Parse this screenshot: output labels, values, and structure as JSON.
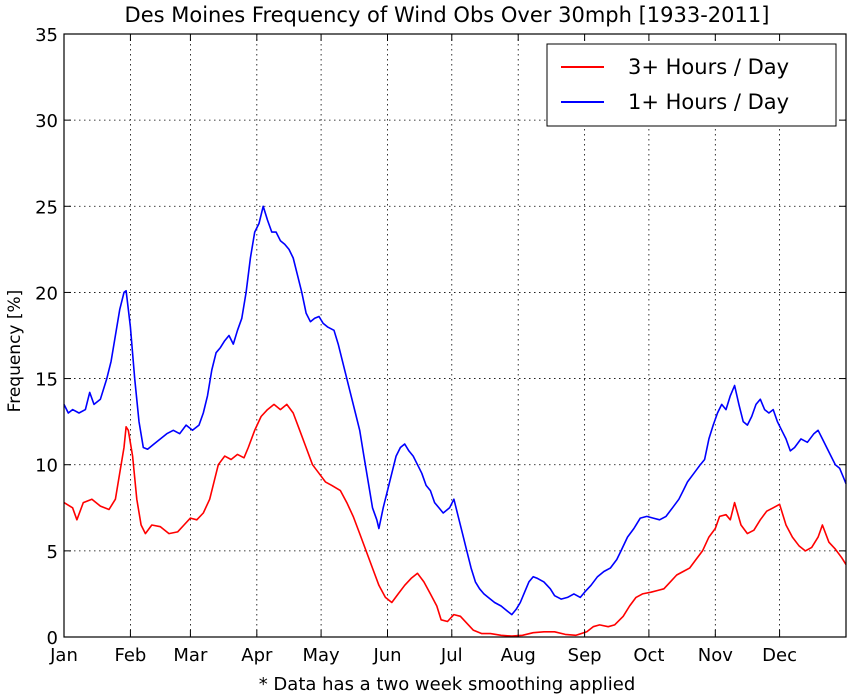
{
  "chart_data": {
    "type": "line",
    "title": "Des Moines Frequency of Wind Obs Over 30mph [1933-2011]",
    "xlabel": "* Data has a two week smoothing applied",
    "ylabel": "Frequency [%]",
    "xlim": [
      1,
      366
    ],
    "ylim": [
      0,
      35
    ],
    "yticks": [
      0,
      5,
      10,
      15,
      20,
      25,
      30,
      35
    ],
    "xticks": [
      {
        "label": "Jan",
        "day": 1
      },
      {
        "label": "Feb",
        "day": 32
      },
      {
        "label": "Mar",
        "day": 60
      },
      {
        "label": "Apr",
        "day": 91
      },
      {
        "label": "May",
        "day": 121
      },
      {
        "label": "Jun",
        "day": 152
      },
      {
        "label": "Jul",
        "day": 182
      },
      {
        "label": "Aug",
        "day": 213
      },
      {
        "label": "Sep",
        "day": 244
      },
      {
        "label": "Oct",
        "day": 274
      },
      {
        "label": "Nov",
        "day": 305
      },
      {
        "label": "Dec",
        "day": 335
      }
    ],
    "grid": true,
    "legend_position": "top-right",
    "series": [
      {
        "name": "3+ Hours / Day",
        "color": "#ff0000",
        "points": [
          [
            1,
            7.8
          ],
          [
            5,
            7.5
          ],
          [
            7,
            6.8
          ],
          [
            10,
            7.8
          ],
          [
            14,
            8.0
          ],
          [
            18,
            7.6
          ],
          [
            22,
            7.4
          ],
          [
            25,
            8.0
          ],
          [
            27,
            9.5
          ],
          [
            29,
            11.0
          ],
          [
            30,
            12.2
          ],
          [
            31,
            12.0
          ],
          [
            33,
            10.5
          ],
          [
            35,
            8.0
          ],
          [
            37,
            6.5
          ],
          [
            39,
            6.0
          ],
          [
            42,
            6.5
          ],
          [
            46,
            6.4
          ],
          [
            50,
            6.0
          ],
          [
            54,
            6.1
          ],
          [
            57,
            6.5
          ],
          [
            60,
            6.9
          ],
          [
            63,
            6.8
          ],
          [
            66,
            7.2
          ],
          [
            69,
            8.0
          ],
          [
            71,
            9.0
          ],
          [
            73,
            10.0
          ],
          [
            76,
            10.5
          ],
          [
            79,
            10.3
          ],
          [
            82,
            10.6
          ],
          [
            85,
            10.4
          ],
          [
            87,
            11.0
          ],
          [
            90,
            12.0
          ],
          [
            93,
            12.8
          ],
          [
            96,
            13.2
          ],
          [
            99,
            13.5
          ],
          [
            102,
            13.2
          ],
          [
            105,
            13.5
          ],
          [
            108,
            13.0
          ],
          [
            111,
            12.0
          ],
          [
            114,
            11.0
          ],
          [
            117,
            10.0
          ],
          [
            120,
            9.5
          ],
          [
            123,
            9.0
          ],
          [
            126,
            8.8
          ],
          [
            130,
            8.5
          ],
          [
            133,
            7.8
          ],
          [
            136,
            7.0
          ],
          [
            139,
            6.0
          ],
          [
            142,
            5.0
          ],
          [
            145,
            4.0
          ],
          [
            148,
            3.0
          ],
          [
            151,
            2.3
          ],
          [
            154,
            2.0
          ],
          [
            157,
            2.5
          ],
          [
            160,
            3.0
          ],
          [
            163,
            3.4
          ],
          [
            166,
            3.7
          ],
          [
            169,
            3.2
          ],
          [
            172,
            2.5
          ],
          [
            175,
            1.8
          ],
          [
            177,
            1.0
          ],
          [
            180,
            0.9
          ],
          [
            183,
            1.3
          ],
          [
            186,
            1.2
          ],
          [
            189,
            0.8
          ],
          [
            192,
            0.4
          ],
          [
            196,
            0.2
          ],
          [
            200,
            0.2
          ],
          [
            205,
            0.1
          ],
          [
            210,
            0.05
          ],
          [
            215,
            0.1
          ],
          [
            220,
            0.25
          ],
          [
            225,
            0.3
          ],
          [
            230,
            0.3
          ],
          [
            235,
            0.15
          ],
          [
            240,
            0.1
          ],
          [
            245,
            0.3
          ],
          [
            248,
            0.6
          ],
          [
            251,
            0.7
          ],
          [
            255,
            0.6
          ],
          [
            258,
            0.7
          ],
          [
            262,
            1.2
          ],
          [
            265,
            1.8
          ],
          [
            268,
            2.3
          ],
          [
            271,
            2.5
          ],
          [
            275,
            2.6
          ],
          [
            278,
            2.7
          ],
          [
            281,
            2.8
          ],
          [
            284,
            3.2
          ],
          [
            287,
            3.6
          ],
          [
            290,
            3.8
          ],
          [
            293,
            4.0
          ],
          [
            296,
            4.5
          ],
          [
            299,
            5.0
          ],
          [
            302,
            5.8
          ],
          [
            305,
            6.3
          ],
          [
            307,
            7.0
          ],
          [
            310,
            7.1
          ],
          [
            312,
            6.8
          ],
          [
            314,
            7.8
          ],
          [
            317,
            6.5
          ],
          [
            320,
            6.0
          ],
          [
            323,
            6.2
          ],
          [
            326,
            6.8
          ],
          [
            329,
            7.3
          ],
          [
            332,
            7.5
          ],
          [
            335,
            7.7
          ],
          [
            338,
            6.5
          ],
          [
            341,
            5.8
          ],
          [
            344,
            5.3
          ],
          [
            347,
            5.0
          ],
          [
            350,
            5.2
          ],
          [
            353,
            5.8
          ],
          [
            355,
            6.5
          ],
          [
            358,
            5.5
          ],
          [
            361,
            5.1
          ],
          [
            364,
            4.6
          ],
          [
            366,
            4.2
          ]
        ]
      },
      {
        "name": "1+ Hours / Day",
        "color": "#0000ff",
        "points": [
          [
            1,
            13.5
          ],
          [
            3,
            13.0
          ],
          [
            5,
            13.2
          ],
          [
            8,
            13.0
          ],
          [
            11,
            13.2
          ],
          [
            13,
            14.2
          ],
          [
            15,
            13.5
          ],
          [
            18,
            13.8
          ],
          [
            21,
            15.0
          ],
          [
            23,
            16.0
          ],
          [
            25,
            17.5
          ],
          [
            27,
            19.0
          ],
          [
            29,
            20.0
          ],
          [
            30,
            20.1
          ],
          [
            32,
            18.0
          ],
          [
            34,
            15.0
          ],
          [
            36,
            12.5
          ],
          [
            38,
            11.0
          ],
          [
            40,
            10.9
          ],
          [
            43,
            11.2
          ],
          [
            46,
            11.5
          ],
          [
            49,
            11.8
          ],
          [
            52,
            12.0
          ],
          [
            55,
            11.8
          ],
          [
            58,
            12.3
          ],
          [
            61,
            12.0
          ],
          [
            64,
            12.3
          ],
          [
            66,
            13.0
          ],
          [
            68,
            14.0
          ],
          [
            70,
            15.5
          ],
          [
            72,
            16.5
          ],
          [
            74,
            16.8
          ],
          [
            76,
            17.2
          ],
          [
            78,
            17.5
          ],
          [
            80,
            17.0
          ],
          [
            82,
            17.8
          ],
          [
            84,
            18.5
          ],
          [
            86,
            20.0
          ],
          [
            88,
            22.0
          ],
          [
            90,
            23.5
          ],
          [
            92,
            24.0
          ],
          [
            94,
            25.0
          ],
          [
            96,
            24.2
          ],
          [
            98,
            23.5
          ],
          [
            100,
            23.5
          ],
          [
            102,
            23.0
          ],
          [
            104,
            22.8
          ],
          [
            106,
            22.5
          ],
          [
            108,
            22.0
          ],
          [
            110,
            21.0
          ],
          [
            112,
            20.0
          ],
          [
            114,
            18.8
          ],
          [
            116,
            18.3
          ],
          [
            118,
            18.5
          ],
          [
            120,
            18.6
          ],
          [
            122,
            18.2
          ],
          [
            124,
            18.0
          ],
          [
            127,
            17.8
          ],
          [
            129,
            17.0
          ],
          [
            131,
            16.0
          ],
          [
            133,
            15.0
          ],
          [
            135,
            14.0
          ],
          [
            137,
            13.0
          ],
          [
            139,
            12.0
          ],
          [
            141,
            10.5
          ],
          [
            143,
            9.0
          ],
          [
            145,
            7.5
          ],
          [
            147,
            6.8
          ],
          [
            148,
            6.3
          ],
          [
            150,
            7.5
          ],
          [
            152,
            8.5
          ],
          [
            154,
            9.5
          ],
          [
            156,
            10.5
          ],
          [
            158,
            11.0
          ],
          [
            160,
            11.2
          ],
          [
            162,
            10.8
          ],
          [
            164,
            10.5
          ],
          [
            166,
            10.0
          ],
          [
            168,
            9.5
          ],
          [
            170,
            8.8
          ],
          [
            172,
            8.5
          ],
          [
            174,
            7.8
          ],
          [
            176,
            7.5
          ],
          [
            178,
            7.2
          ],
          [
            181,
            7.5
          ],
          [
            183,
            8.0
          ],
          [
            185,
            7.0
          ],
          [
            187,
            6.0
          ],
          [
            189,
            5.0
          ],
          [
            191,
            4.0
          ],
          [
            193,
            3.2
          ],
          [
            195,
            2.8
          ],
          [
            197,
            2.5
          ],
          [
            199,
            2.3
          ],
          [
            202,
            2.0
          ],
          [
            205,
            1.8
          ],
          [
            208,
            1.5
          ],
          [
            210,
            1.3
          ],
          [
            212,
            1.6
          ],
          [
            214,
            2.0
          ],
          [
            216,
            2.6
          ],
          [
            218,
            3.2
          ],
          [
            220,
            3.5
          ],
          [
            222,
            3.4
          ],
          [
            225,
            3.2
          ],
          [
            228,
            2.8
          ],
          [
            230,
            2.4
          ],
          [
            233,
            2.2
          ],
          [
            236,
            2.3
          ],
          [
            239,
            2.5
          ],
          [
            242,
            2.3
          ],
          [
            244,
            2.6
          ],
          [
            247,
            3.0
          ],
          [
            250,
            3.5
          ],
          [
            253,
            3.8
          ],
          [
            256,
            4.0
          ],
          [
            259,
            4.5
          ],
          [
            261,
            5.0
          ],
          [
            264,
            5.8
          ],
          [
            267,
            6.3
          ],
          [
            270,
            6.9
          ],
          [
            273,
            7.0
          ],
          [
            276,
            6.9
          ],
          [
            279,
            6.8
          ],
          [
            282,
            7.0
          ],
          [
            285,
            7.5
          ],
          [
            288,
            8.0
          ],
          [
            290,
            8.5
          ],
          [
            292,
            9.0
          ],
          [
            295,
            9.5
          ],
          [
            298,
            10.0
          ],
          [
            300,
            10.3
          ],
          [
            302,
            11.5
          ],
          [
            304,
            12.3
          ],
          [
            306,
            13.0
          ],
          [
            308,
            13.5
          ],
          [
            310,
            13.2
          ],
          [
            312,
            14.0
          ],
          [
            314,
            14.6
          ],
          [
            316,
            13.5
          ],
          [
            318,
            12.5
          ],
          [
            320,
            12.3
          ],
          [
            322,
            12.8
          ],
          [
            324,
            13.5
          ],
          [
            326,
            13.8
          ],
          [
            328,
            13.2
          ],
          [
            330,
            13.0
          ],
          [
            332,
            13.2
          ],
          [
            334,
            12.5
          ],
          [
            336,
            12.0
          ],
          [
            338,
            11.5
          ],
          [
            340,
            10.8
          ],
          [
            342,
            11.0
          ],
          [
            345,
            11.5
          ],
          [
            348,
            11.3
          ],
          [
            351,
            11.8
          ],
          [
            353,
            12.0
          ],
          [
            355,
            11.5
          ],
          [
            357,
            11.0
          ],
          [
            359,
            10.5
          ],
          [
            361,
            10.0
          ],
          [
            363,
            9.8
          ],
          [
            365,
            9.2
          ],
          [
            366,
            8.9
          ]
        ]
      }
    ]
  }
}
